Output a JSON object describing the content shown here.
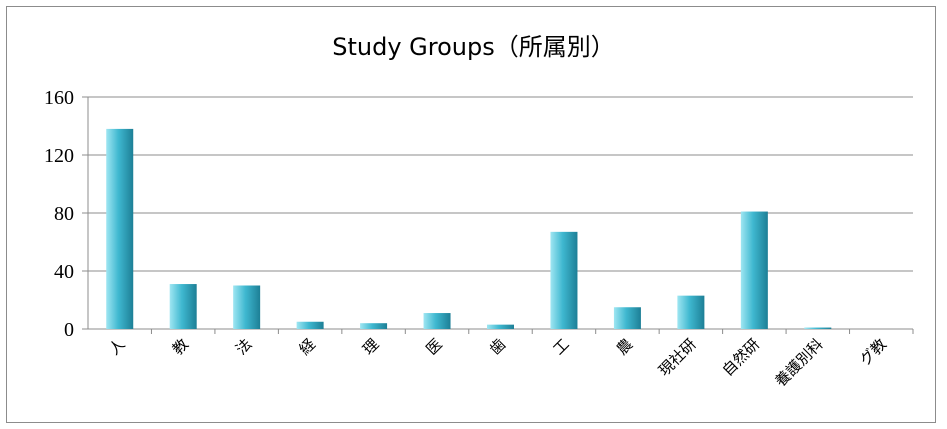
{
  "chart_data": {
    "type": "bar",
    "title": "Study Groups（所属別）",
    "xlabel": "",
    "ylabel": "",
    "categories": [
      "人",
      "教",
      "法",
      "経",
      "理",
      "医",
      "歯",
      "工",
      "農",
      "現社研",
      "自然研",
      "養護別科",
      "グ教"
    ],
    "values": [
      138,
      31,
      30,
      5,
      4,
      11,
      3,
      67,
      15,
      23,
      81,
      1,
      0
    ],
    "ylim": [
      0,
      160
    ],
    "yticks": [
      0,
      40,
      80,
      120,
      160
    ],
    "grid": true,
    "legend": "none",
    "colors": {
      "bar_light": "#9fe6f2",
      "bar_mid": "#3fb8d0",
      "bar_dark": "#1d7f96",
      "grid": "#8c8c8c"
    }
  }
}
